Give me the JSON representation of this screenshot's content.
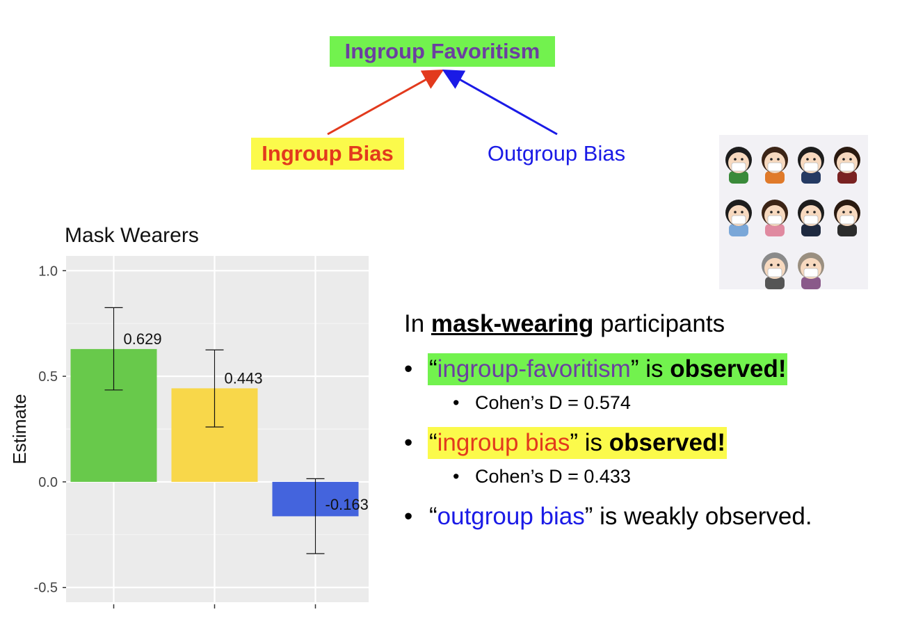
{
  "diagram": {
    "top_label": "Ingroup Favoritism",
    "left_label": "Ingroup Bias",
    "right_label": "Outgroup Bias",
    "colors": {
      "green": "#72f24e",
      "yellow": "#fbfa4b",
      "purple": "#6b3fa0",
      "red": "#e23a1d",
      "blue": "#1a1ae6"
    }
  },
  "illustration": {
    "icon": "masked-people-icon",
    "people_count": 10
  },
  "chart_data": {
    "type": "bar",
    "title": "Mask Wearers",
    "xlabel": "",
    "ylabel": "Estimate",
    "ylim": [
      -0.57,
      1.07
    ],
    "yticks": [
      1.0,
      0.5,
      0.0,
      -0.5
    ],
    "ytick_labels": [
      "1.0",
      "0.5",
      "0.0",
      "-0.5"
    ],
    "categories": [
      "",
      "",
      ""
    ],
    "values": [
      0.629,
      0.443,
      -0.163
    ],
    "value_labels": [
      "0.629",
      "0.443",
      "-0.163"
    ],
    "error_low": [
      0.435,
      0.26,
      -0.34
    ],
    "error_high": [
      0.825,
      0.625,
      0.015
    ],
    "bar_colors": [
      "#68c94b",
      "#f8d74a",
      "#4464dd"
    ],
    "grid": true
  },
  "summary": {
    "intro_prefix": "In ",
    "intro_keyword": "mask-wearing",
    "intro_suffix": " participants",
    "bullet_char": "•",
    "b1_quote_open": "“",
    "b1_term": "ingroup-favoritism",
    "b1_quote_close": "”",
    "b1_is": " is ",
    "b1_result": "observed!",
    "b1_sub": "Cohen’s D = 0.574",
    "b2_quote_open": "“",
    "b2_term": "ingroup bias",
    "b2_quote_close": "”",
    "b2_is": " is ",
    "b2_result": "observed!",
    "b2_sub": "Cohen’s D = 0.433",
    "b3_quote_open": "“",
    "b3_term": "outgroup bias",
    "b3_quote_close": "”",
    "b3_rest": " is weakly observed."
  }
}
